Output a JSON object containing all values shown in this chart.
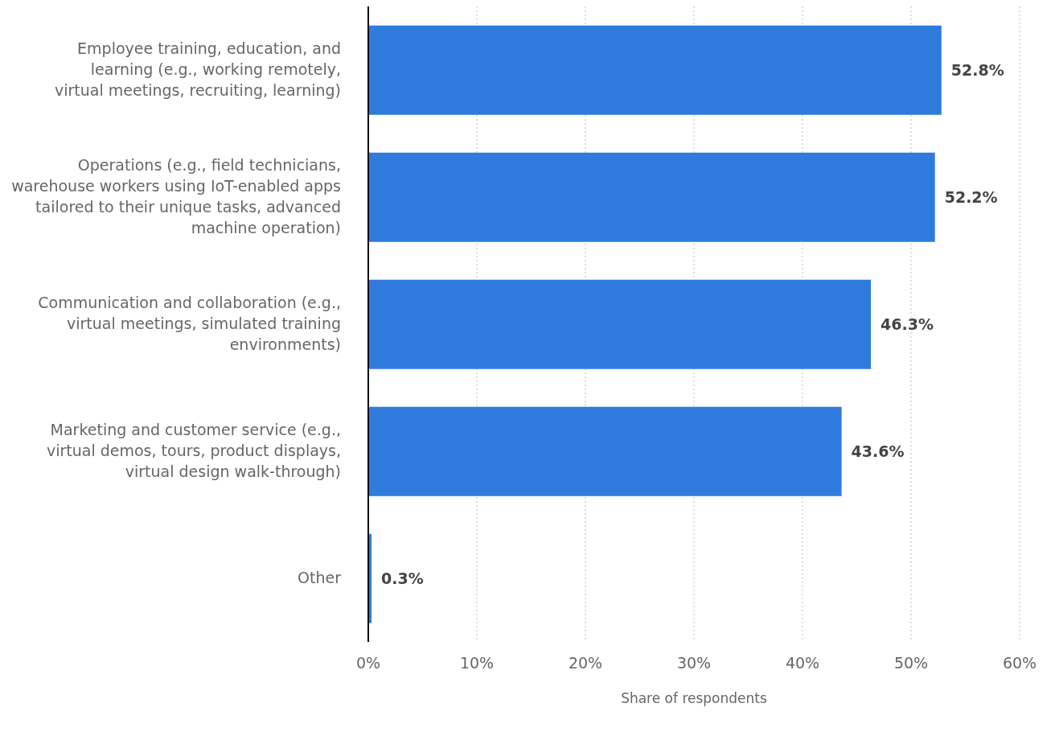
{
  "chart_data": {
    "type": "bar",
    "orientation": "horizontal",
    "xlabel": "Share of respondents",
    "categories": [
      "Employee training, education, and learning (e.g., working remotely, virtual meetings, recruiting, learning)",
      "Operations (e.g., field technicians, warehouse workers using IoT-enabled apps tailored to their unique tasks, advanced machine operation)",
      "Communication and collaboration (e.g., virtual meetings, simulated training environments)",
      "Marketing and customer service (e.g., virtual demos, tours, product displays, virtual design walk-through)",
      "Other"
    ],
    "values": [
      52.8,
      52.2,
      46.3,
      43.6,
      0.3
    ],
    "value_labels": [
      "52.8%",
      "52.2%",
      "46.3%",
      "43.6%",
      "0.3%"
    ],
    "color": "#2f7bdc",
    "xlim": [
      0,
      60
    ],
    "xticks": [
      {
        "value": 0,
        "label": "0%"
      },
      {
        "value": 10,
        "label": "10%"
      },
      {
        "value": 20,
        "label": "20%"
      },
      {
        "value": 30,
        "label": "30%"
      },
      {
        "value": 40,
        "label": "40%"
      },
      {
        "value": 50,
        "label": "50%"
      },
      {
        "value": 60,
        "label": "60%"
      }
    ],
    "grid": "x"
  }
}
